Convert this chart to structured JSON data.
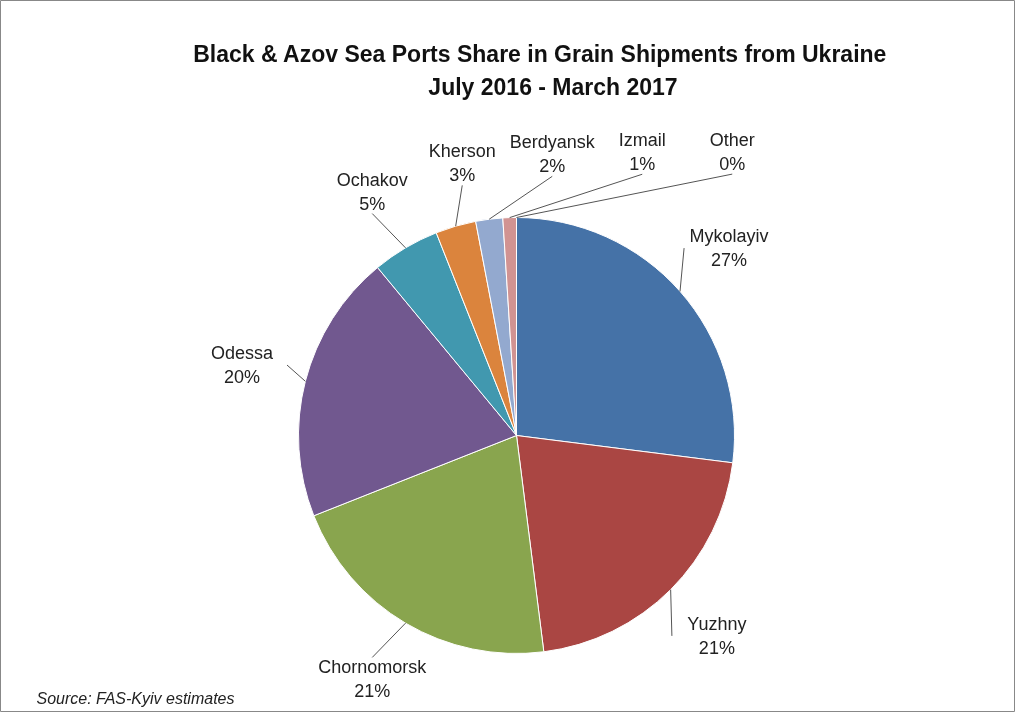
{
  "chart_data": {
    "type": "pie",
    "title": "Black & Azov Sea Ports  Share  in  Grain  Shipments from Ukraine\nJuly 2016 - March 2017",
    "categories": [
      "Mykolayiv",
      "Yuzhny",
      "Chornomorsk",
      "Odessa",
      "Ochakov",
      "Kherson",
      "Berdyansk",
      "Izmail",
      "Other"
    ],
    "values": [
      27,
      21,
      21,
      20,
      5,
      3,
      2,
      1,
      0
    ],
    "value_labels": [
      "27%",
      "21%",
      "21%",
      "20%",
      "5%",
      "3%",
      "2%",
      "1%",
      "0%"
    ],
    "colors": [
      "#4572a7",
      "#aa4643",
      "#89a54e",
      "#71588f",
      "#4198af",
      "#db843d",
      "#93a9cf",
      "#d19392",
      "#b9cd96"
    ],
    "annotations": [
      "Source:  FAS-Kyiv estimates"
    ]
  }
}
